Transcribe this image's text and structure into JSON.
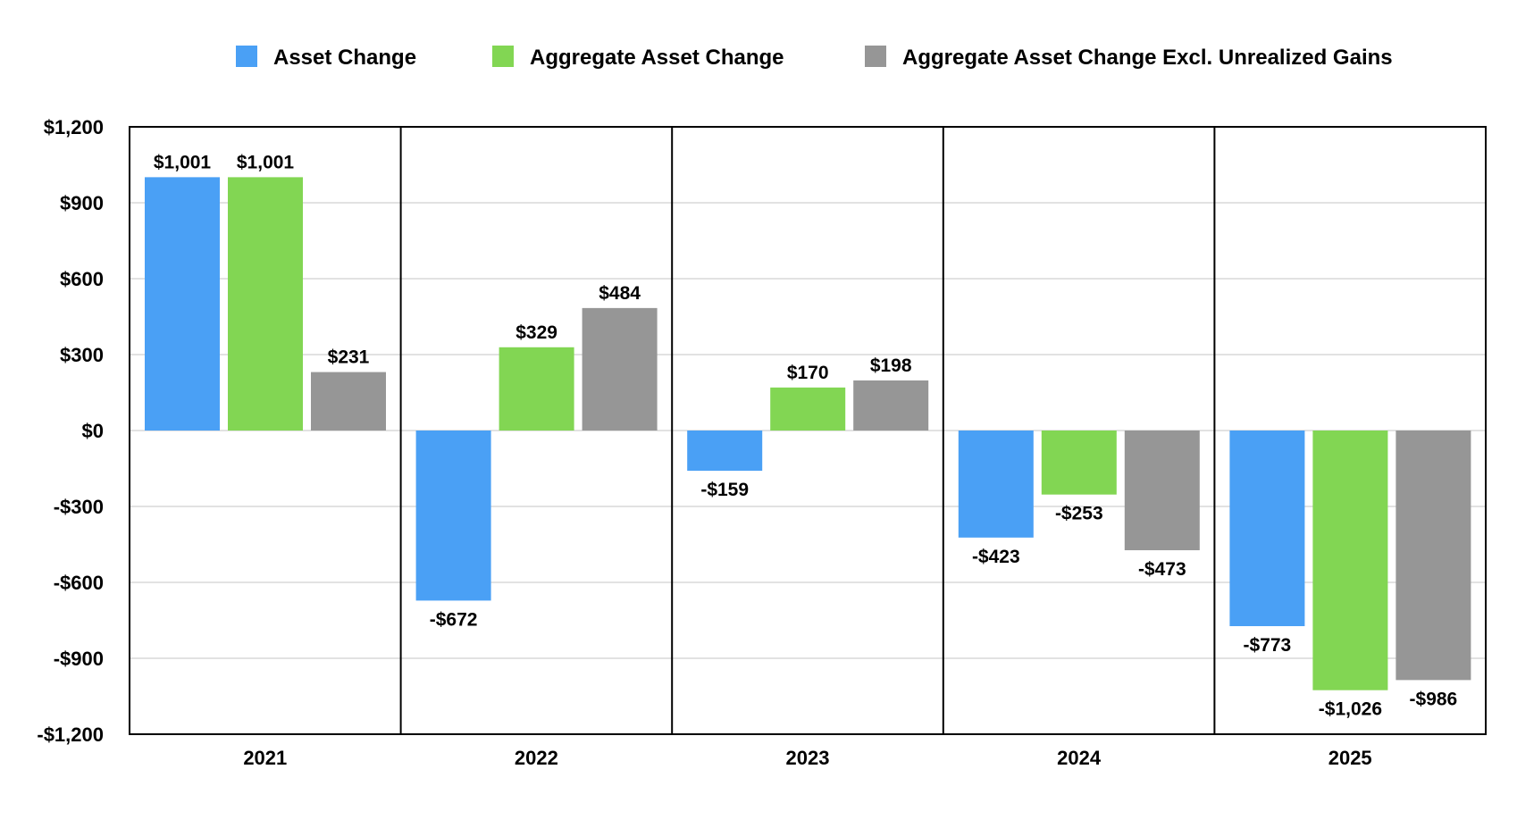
{
  "chart_data": {
    "type": "bar",
    "title": "",
    "xlabel": "",
    "ylabel": "",
    "categories": [
      "2021",
      "2022",
      "2023",
      "2024",
      "2025"
    ],
    "series": [
      {
        "name": "Asset Change",
        "color": "#4aa0f5",
        "values": [
          1001,
          -672,
          -159,
          -423,
          -773
        ],
        "labels": [
          "$1,001",
          "-$672",
          "-$159",
          "-$423",
          "-$773"
        ]
      },
      {
        "name": "Aggregate Asset Change",
        "color": "#82d653",
        "values": [
          1001,
          329,
          170,
          -253,
          -1026
        ],
        "labels": [
          "$1,001",
          "$329",
          "$170",
          "-$253",
          "-$1,026"
        ]
      },
      {
        "name": "Aggregate Asset Change Excl. Unrealized Gains",
        "color": "#969696",
        "values": [
          231,
          484,
          198,
          -473,
          -986
        ],
        "labels": [
          "$231",
          "$484",
          "$198",
          "-$473",
          "-$986"
        ]
      }
    ],
    "ylim": [
      -1200,
      1200
    ],
    "yticks": [
      1200,
      900,
      600,
      300,
      0,
      -300,
      -600,
      -900,
      -1200
    ],
    "ytick_labels": [
      "$1,200",
      "$900",
      "$600",
      "$300",
      "$0",
      "-$300",
      "-$600",
      "-$900",
      "-$1,200"
    ],
    "grid": true,
    "legend_position": "top"
  }
}
